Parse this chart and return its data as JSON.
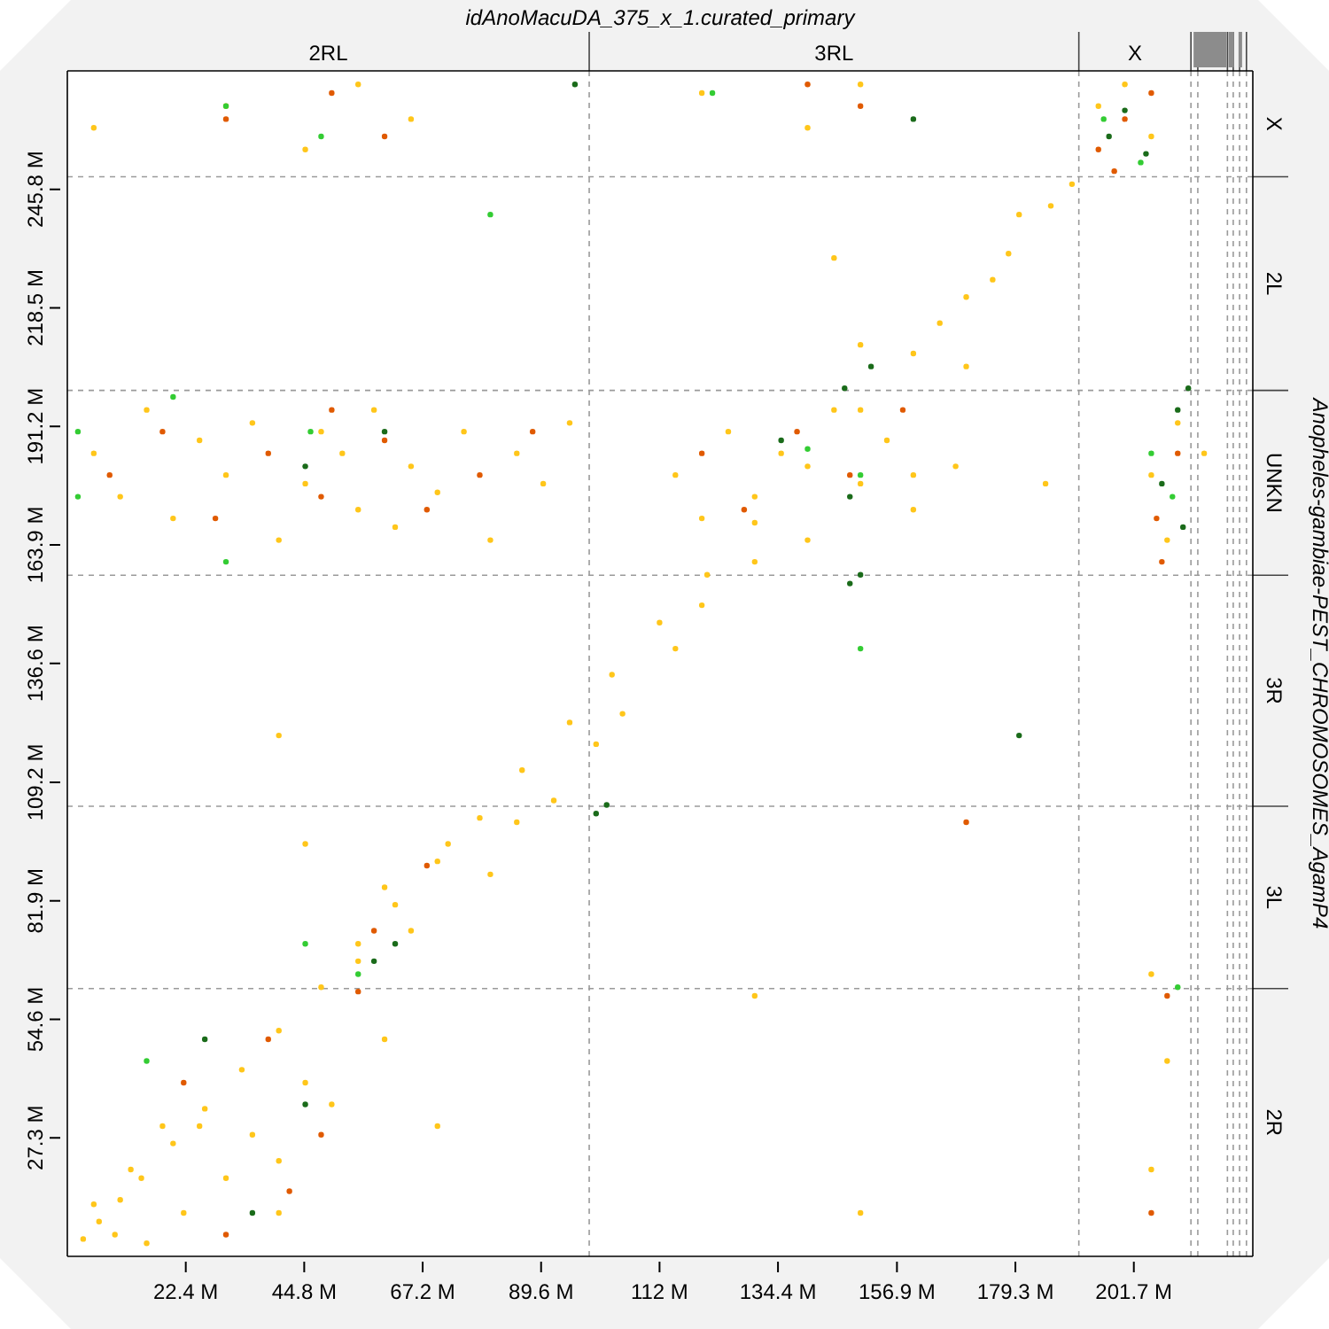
{
  "chart_data": {
    "type": "scatter",
    "title": "idAnoMacuDA_375_x_1.curated_primary",
    "y2label": "Anopheles-gambiae-PEST_CHROMOSOMES_AgamP4",
    "marker": "circle",
    "xlim": [
      0,
      224.2
    ],
    "ylim": [
      0,
      273.1
    ],
    "xticks": [
      {
        "value": 22.4,
        "label": "22.4 M"
      },
      {
        "value": 44.8,
        "label": "44.8 M"
      },
      {
        "value": 67.2,
        "label": "67.2 M"
      },
      {
        "value": 89.6,
        "label": "89.6 M"
      },
      {
        "value": 112,
        "label": "112 M"
      },
      {
        "value": 134.4,
        "label": "134.4 M"
      },
      {
        "value": 156.9,
        "label": "156.9 M"
      },
      {
        "value": 179.3,
        "label": "179.3 M"
      },
      {
        "value": 201.7,
        "label": "201.7 M"
      }
    ],
    "yticks": [
      {
        "value": 27.3,
        "label": "27.3 M"
      },
      {
        "value": 54.6,
        "label": "54.6 M"
      },
      {
        "value": 81.9,
        "label": "81.9 M"
      },
      {
        "value": 109.2,
        "label": "109.2 M"
      },
      {
        "value": 136.6,
        "label": "136.6 M"
      },
      {
        "value": 163.9,
        "label": "163.9 M"
      },
      {
        "value": 191.2,
        "label": "191.2 M"
      },
      {
        "value": 218.5,
        "label": "218.5 M"
      },
      {
        "value": 245.8,
        "label": "245.8 M"
      }
    ],
    "annotations": [
      "2RL",
      "3RL",
      "X",
      "X",
      "2L",
      "UNKN",
      "3R",
      "3L",
      "2R"
    ],
    "ref_lines": [
      {
        "axis": "x",
        "value": 98.7,
        "color": "#9a9a9a",
        "line_style": "dashed"
      },
      {
        "axis": "x",
        "value": 191.3,
        "color": "#9a9a9a",
        "line_style": "dashed"
      },
      {
        "axis": "y",
        "value": 248.7,
        "color": "#9a9a9a",
        "line_style": "dashed"
      },
      {
        "axis": "y",
        "value": 199.5,
        "color": "#9a9a9a",
        "line_style": "dashed"
      },
      {
        "axis": "y",
        "value": 156.9,
        "color": "#9a9a9a",
        "line_style": "dashed"
      },
      {
        "axis": "y",
        "value": 103.7,
        "color": "#9a9a9a",
        "line_style": "dashed"
      },
      {
        "axis": "y",
        "value": 61.7,
        "color": "#9a9a9a",
        "line_style": "dashed"
      },
      {
        "axis": "x",
        "value": 212.5,
        "color": "#9a9a9a",
        "line_style": "dashed"
      },
      {
        "axis": "x",
        "value": 213.8,
        "color": "#9a9a9a",
        "line_style": "dashed"
      },
      {
        "axis": "x",
        "value": 219.4,
        "color": "#9a9a9a",
        "line_style": "dashed"
      },
      {
        "axis": "x",
        "value": 220.5,
        "color": "#9a9a9a",
        "line_style": "dashed"
      },
      {
        "axis": "x",
        "value": 221.7,
        "color": "#9a9a9a",
        "line_style": "dashed"
      },
      {
        "axis": "x",
        "value": 223,
        "color": "#9a9a9a",
        "line_style": "dashed"
      }
    ],
    "series": [
      {
        "color": "#ffc61a",
        "x": [
          3,
          6,
          10,
          14,
          20,
          26,
          33,
          40,
          48,
          55,
          62,
          70,
          78,
          86,
          95,
          103,
          112,
          121,
          130,
          140,
          150,
          160,
          170,
          178,
          186,
          190,
          5,
          9,
          15,
          12,
          22,
          25,
          30,
          35,
          40,
          45,
          50,
          18,
          55,
          60,
          65,
          72,
          80,
          85,
          92,
          105,
          115,
          120,
          130,
          100,
          160,
          165,
          170,
          175,
          150,
          145,
          180,
          5,
          10,
          15,
          20,
          25,
          30,
          35,
          40,
          45,
          48,
          52,
          55,
          58,
          62,
          65,
          70,
          75,
          80,
          85,
          90,
          95,
          115,
          120,
          125,
          130,
          135,
          140,
          145,
          150,
          155,
          160,
          168,
          185,
          205,
          208,
          210,
          215,
          5,
          30,
          45,
          55,
          65,
          120,
          140,
          150,
          195,
          205,
          200,
          60,
          40,
          70,
          150,
          205,
          208,
          130,
          205,
          40,
          45
        ],
        "values": [
          4,
          8,
          13,
          18,
          26,
          34,
          43,
          52,
          62,
          72,
          81,
          91,
          101,
          112,
          123,
          134,
          146,
          157,
          169,
          182,
          195,
          208,
          221,
          231,
          242,
          247,
          12,
          5,
          3,
          20,
          10,
          30,
          18,
          28,
          22,
          40,
          35,
          30,
          68,
          85,
          75,
          95,
          88,
          100,
          105,
          125,
          140,
          150,
          160,
          118,
          180,
          215,
          205,
          225,
          210,
          230,
          240,
          185,
          175,
          195,
          170,
          188,
          180,
          192,
          165,
          178,
          190,
          185,
          172,
          195,
          168,
          182,
          176,
          190,
          165,
          185,
          178,
          192,
          180,
          170,
          190,
          175,
          185,
          165,
          195,
          178,
          188,
          172,
          182,
          178,
          180,
          165,
          192,
          185,
          260,
          265,
          255,
          270,
          262,
          268,
          260,
          270,
          265,
          258,
          270,
          50,
          10,
          30,
          10,
          20,
          45,
          60,
          65,
          120,
          95
        ]
      },
      {
        "color": "#e05a00",
        "x": [
          8,
          18,
          28,
          38,
          48,
          50,
          60,
          68,
          78,
          88,
          120,
          128,
          138,
          148,
          158,
          206,
          210,
          207,
          22,
          42,
          38,
          30,
          48,
          55,
          58,
          68,
          195,
          200,
          205,
          198,
          30,
          50,
          60,
          140,
          150,
          208,
          205,
          170
        ],
        "values": [
          180,
          190,
          170,
          185,
          175,
          195,
          188,
          172,
          180,
          190,
          185,
          172,
          190,
          180,
          195,
          170,
          185,
          160,
          40,
          15,
          50,
          5,
          28,
          61,
          75,
          90,
          255,
          262,
          268,
          250,
          262,
          268,
          258,
          270,
          265,
          60,
          10,
          100
        ]
      },
      {
        "color": "#33cc33",
        "x": [
          2,
          2,
          20,
          30,
          46,
          140,
          150,
          205,
          209,
          45,
          55,
          30,
          48,
          122,
          196,
          203,
          80,
          150,
          15,
          210
        ],
        "values": [
          190,
          175,
          198,
          160,
          190,
          186,
          180,
          185,
          175,
          72,
          65,
          265,
          258,
          268,
          262,
          252,
          240,
          140,
          45,
          62
        ]
      },
      {
        "color": "#1a6b1a",
        "x": [
          45,
          60,
          135,
          147,
          152,
          148,
          207,
          211,
          58,
          62,
          26,
          45,
          35,
          100,
          102,
          148,
          150,
          197,
          200,
          204,
          96,
          160,
          180,
          210,
          212
        ],
        "values": [
          182,
          190,
          188,
          200,
          205,
          175,
          178,
          168,
          68,
          72,
          50,
          35,
          10,
          102,
          104,
          155,
          157,
          258,
          264,
          254,
          270,
          262,
          120,
          195,
          200
        ]
      }
    ]
  }
}
